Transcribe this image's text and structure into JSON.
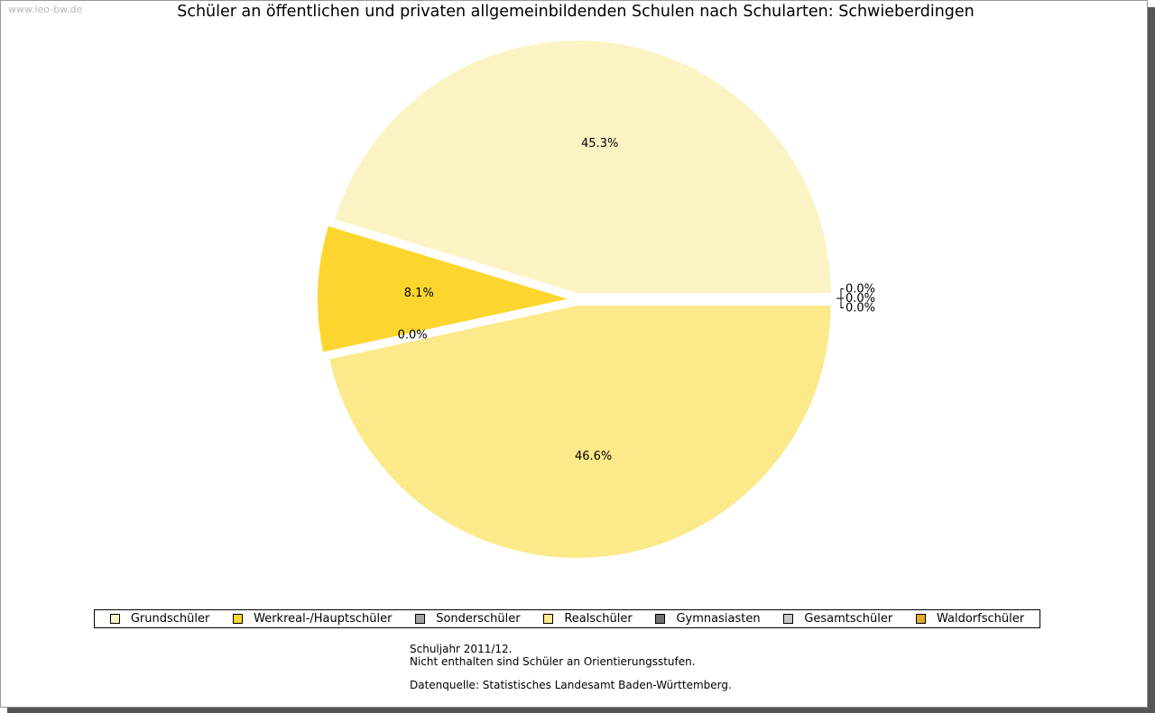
{
  "watermark": "www.leo-bw.de",
  "chart_data": {
    "type": "pie",
    "title": "Schüler an öffentlichen und privaten allgemeinbildenden Schulen nach Schularten: Schwieberdingen",
    "slices": [
      {
        "name": "Grundschüler",
        "value": 45.3,
        "label": "45.3%",
        "color": "#fcf3c4"
      },
      {
        "name": "Werkreal-/Hauptschüler",
        "value": 8.1,
        "label": "8.1%",
        "color": "#fcd62f"
      },
      {
        "name": "Sonderschüler",
        "value": 0.0,
        "label": "0.0%",
        "color": "#a0a0a0"
      },
      {
        "name": "Realschüler",
        "value": 46.6,
        "label": "46.6%",
        "color": "#fce98a"
      },
      {
        "name": "Gymnasiasten",
        "value": 0.0,
        "label": "0.0%",
        "color": "#707070"
      },
      {
        "name": "Gesamtschüler",
        "value": 0.0,
        "label": "0.0%",
        "color": "#c8c8c8"
      },
      {
        "name": "Waldorfschüler",
        "value": 0.0,
        "label": "0.0%",
        "color": "#e4aa28"
      }
    ],
    "legend_position": "bottom"
  },
  "notes": {
    "line1": "Schuljahr 2011/12.",
    "line2": "Nicht enthalten sind Schüler an Orientierungsstufen.",
    "line3": "Datenquelle: Statistisches Landesamt Baden-Württemberg."
  }
}
